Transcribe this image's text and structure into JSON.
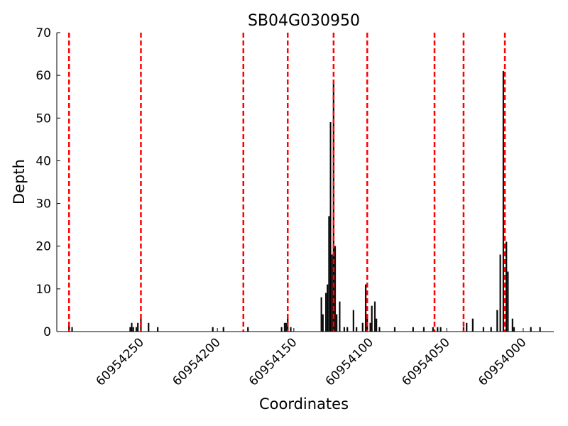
{
  "chart_data": {
    "type": "bar",
    "title": "SB04G030950",
    "xlabel": "Coordinates",
    "ylabel": "Depth",
    "x": [
      60954297,
      60954295,
      60954257,
      60954256,
      60954255,
      60954253,
      60954252,
      60954250,
      60954245,
      60954239,
      60954203,
      60954196,
      60954180,
      60954158,
      60954156,
      60954155,
      60954154,
      60954152,
      60954132,
      60954131,
      60954129,
      60954128,
      60954127,
      60954126,
      60954125,
      60954124,
      60954123,
      60954122,
      60954120,
      60954117,
      60954115,
      60954111,
      60954109,
      60954105,
      60954103,
      60954102,
      60954100,
      60954099,
      60954097,
      60954096,
      60954094,
      60954084,
      60954072,
      60954065,
      60954059,
      60954056,
      60954054,
      60954039,
      60954037,
      60954033,
      60954026,
      60954021,
      60954017,
      60954015,
      60954013,
      60954011,
      60954010,
      60954007,
      60954006,
      60953995,
      60953989
    ],
    "values": [
      2,
      1,
      1,
      2,
      1,
      1,
      2,
      3,
      2,
      1,
      1,
      1,
      1,
      1,
      2,
      2,
      3,
      1,
      8,
      4,
      9,
      11,
      27,
      49,
      18,
      58,
      20,
      4,
      7,
      1,
      1,
      5,
      1,
      2,
      11,
      4,
      2,
      6,
      7,
      3,
      1,
      1,
      1,
      1,
      1,
      1,
      1,
      1,
      2,
      3,
      1,
      1,
      5,
      18,
      61,
      21,
      14,
      3,
      1,
      1,
      1
    ],
    "color": "#000000",
    "vlines": [
      60954297,
      60954250,
      60954183,
      60954154,
      60954124,
      60954102,
      60954058,
      60954039,
      60954012
    ],
    "vline_color": "#ff0000",
    "xlim": [
      60954305,
      60953980
    ],
    "xticks": [
      60954250,
      60954200,
      60954150,
      60954100,
      60954050,
      60954000
    ],
    "ylim": [
      0,
      70
    ],
    "yticks": [
      0,
      10,
      20,
      30,
      40,
      50,
      60,
      70
    ]
  }
}
